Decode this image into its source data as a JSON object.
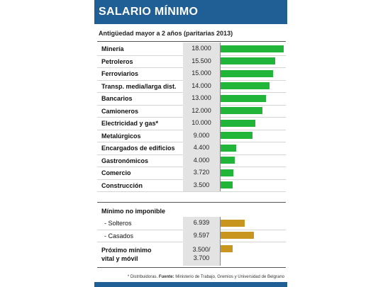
{
  "header": {
    "title": "SALARIO MÍNIMO"
  },
  "colors": {
    "header": "#1f5f96",
    "primary_bar": "#21b53a",
    "secondary_bar": "#c8961e"
  },
  "chart_data": {
    "type": "bar",
    "orientation": "horizontal",
    "title": "SALARIO MÍNIMO",
    "subtitle": "Antigüedad mayor a 2 años (paritarias 2013)",
    "sections": [
      {
        "label": "",
        "rows": [
          {
            "label": "Minería",
            "display": "18.000",
            "value": 18000
          },
          {
            "label": "Petroleros",
            "display": "15.500",
            "value": 15500
          },
          {
            "label": "Ferroviarios",
            "display": "15.000",
            "value": 15000
          },
          {
            "label": "Transp. media/larga dist.",
            "display": "14.000",
            "value": 14000
          },
          {
            "label": "Bancarios",
            "display": "13.000",
            "value": 13000
          },
          {
            "label": "Camioneros",
            "display": "12.000",
            "value": 12000
          },
          {
            "label": "Electricidad y gas*",
            "display": "10.000",
            "value": 10000
          },
          {
            "label": "Metalúrgicos",
            "display": "9.000",
            "value": 9000
          },
          {
            "label": "Encargados de edificios",
            "display": "4.400",
            "value": 4400
          },
          {
            "label": "Gastronómicos",
            "display": "4.000",
            "value": 4000
          },
          {
            "label": "Comercio",
            "display": "3.720",
            "value": 3720
          },
          {
            "label": "Construcción",
            "display": "3.500",
            "value": 3500
          }
        ]
      },
      {
        "label": "Mínimo no imponible",
        "rows": [
          {
            "label": "- Solteros",
            "display": "6.939",
            "value": 6939
          },
          {
            "label": "- Casados",
            "display": "9.597",
            "value": 9597
          }
        ]
      },
      {
        "label": "",
        "rows": [
          {
            "label": "Próximo mínimo vital y móvil",
            "label_line1": "Próximo mínimo",
            "label_line2": "vital y móvil",
            "display_line1": "3.500/",
            "display_line2": "3.700",
            "value": 3500
          }
        ]
      }
    ],
    "xlim": [
      0,
      18000
    ],
    "footnote": {
      "note": "* Distribuidoras.",
      "source_label": "Fuente:",
      "source_text": "Ministerio de Trabajo, Gremios y Universidad de Belgrano"
    }
  }
}
